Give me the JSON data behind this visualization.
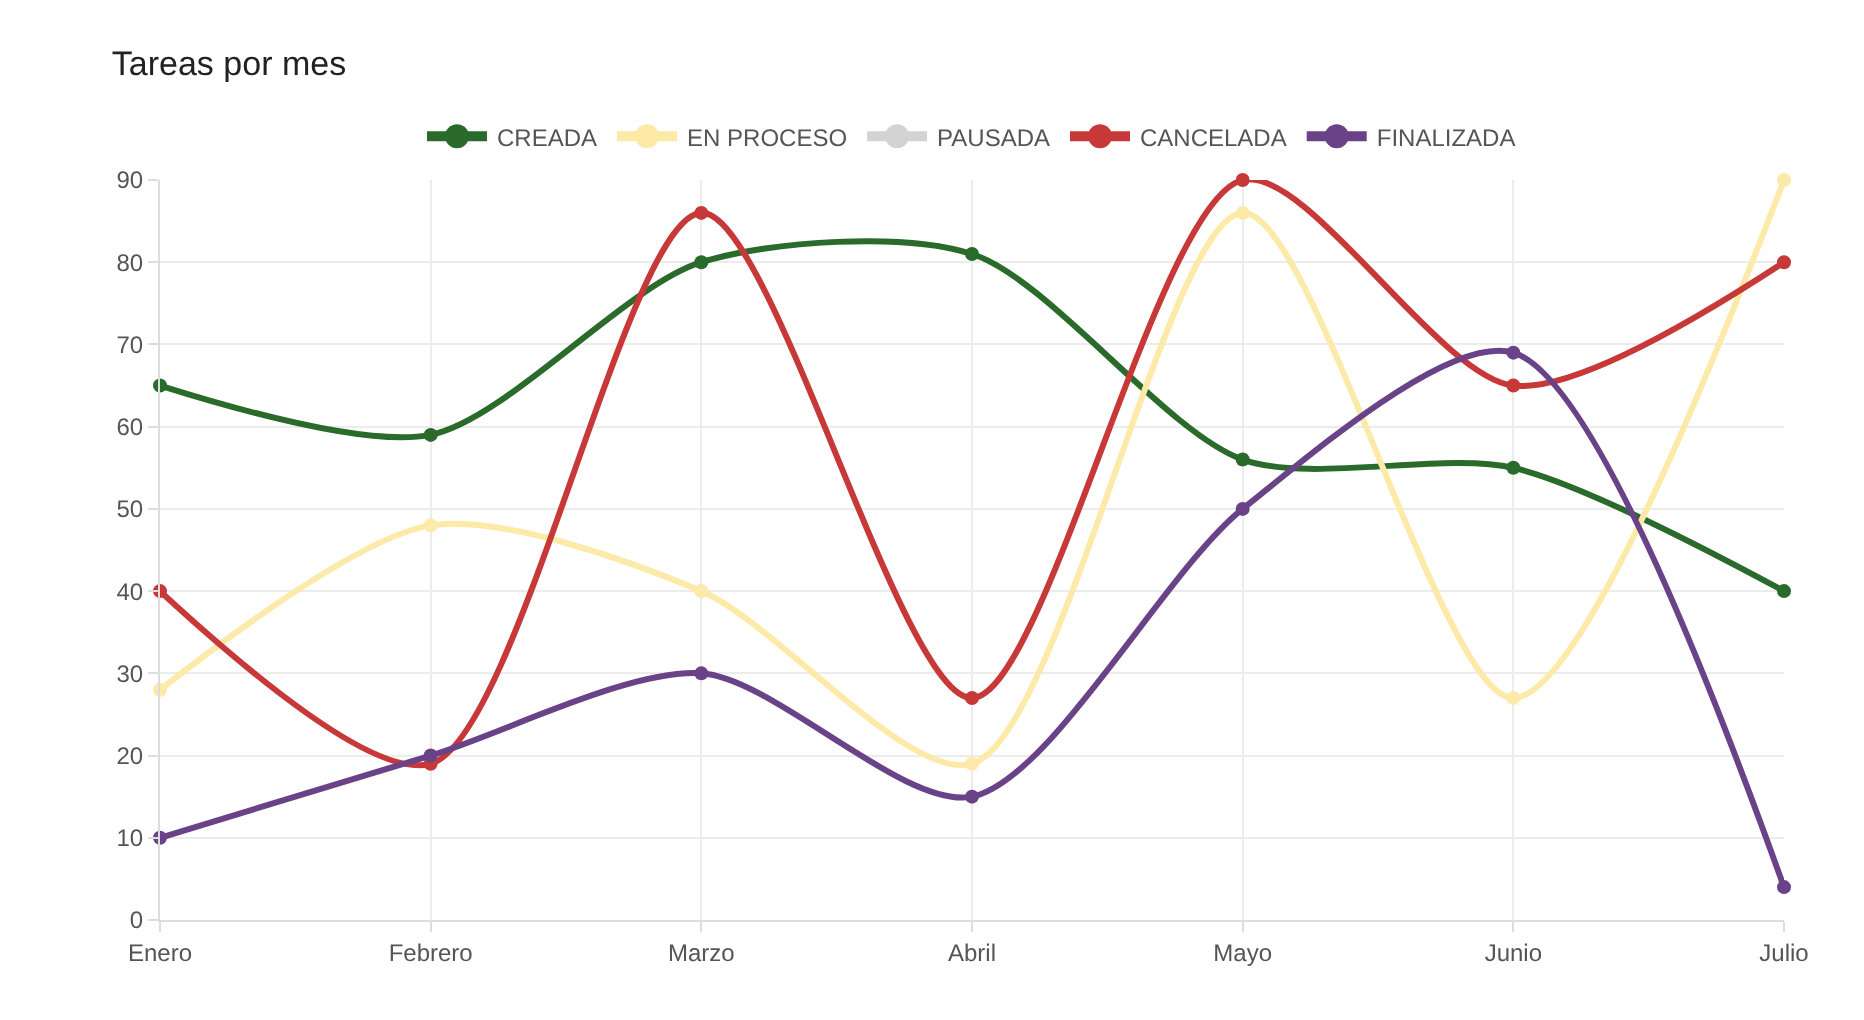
{
  "chart_data": {
    "type": "line",
    "title": "Tareas por mes",
    "categories": [
      "Enero",
      "Febrero",
      "Marzo",
      "Abril",
      "Mayo",
      "Junio",
      "Julio"
    ],
    "series": [
      {
        "name": "CREADA",
        "color": "#2a6a2a",
        "values": [
          65,
          59,
          80,
          81,
          56,
          55,
          40
        ]
      },
      {
        "name": "EN PROCESO",
        "color": "#fde9a8",
        "values": [
          28,
          48,
          40,
          19,
          86,
          27,
          90
        ]
      },
      {
        "name": "PAUSADA",
        "color": "#d3d3d3",
        "values": [
          null,
          null,
          null,
          null,
          null,
          null,
          null
        ]
      },
      {
        "name": "CANCELADA",
        "color": "#c73838",
        "values": [
          40,
          19,
          86,
          27,
          90,
          65,
          80
        ]
      },
      {
        "name": "FINALIZADA",
        "color": "#6a4287",
        "values": [
          10,
          20,
          30,
          15,
          50,
          69,
          4
        ]
      }
    ],
    "ylim": [
      0,
      90
    ],
    "yticks": [
      0,
      10,
      20,
      30,
      40,
      50,
      60,
      70,
      80,
      90
    ],
    "grid": true,
    "legend": "top",
    "marker": "circle",
    "line_style": "solid"
  }
}
